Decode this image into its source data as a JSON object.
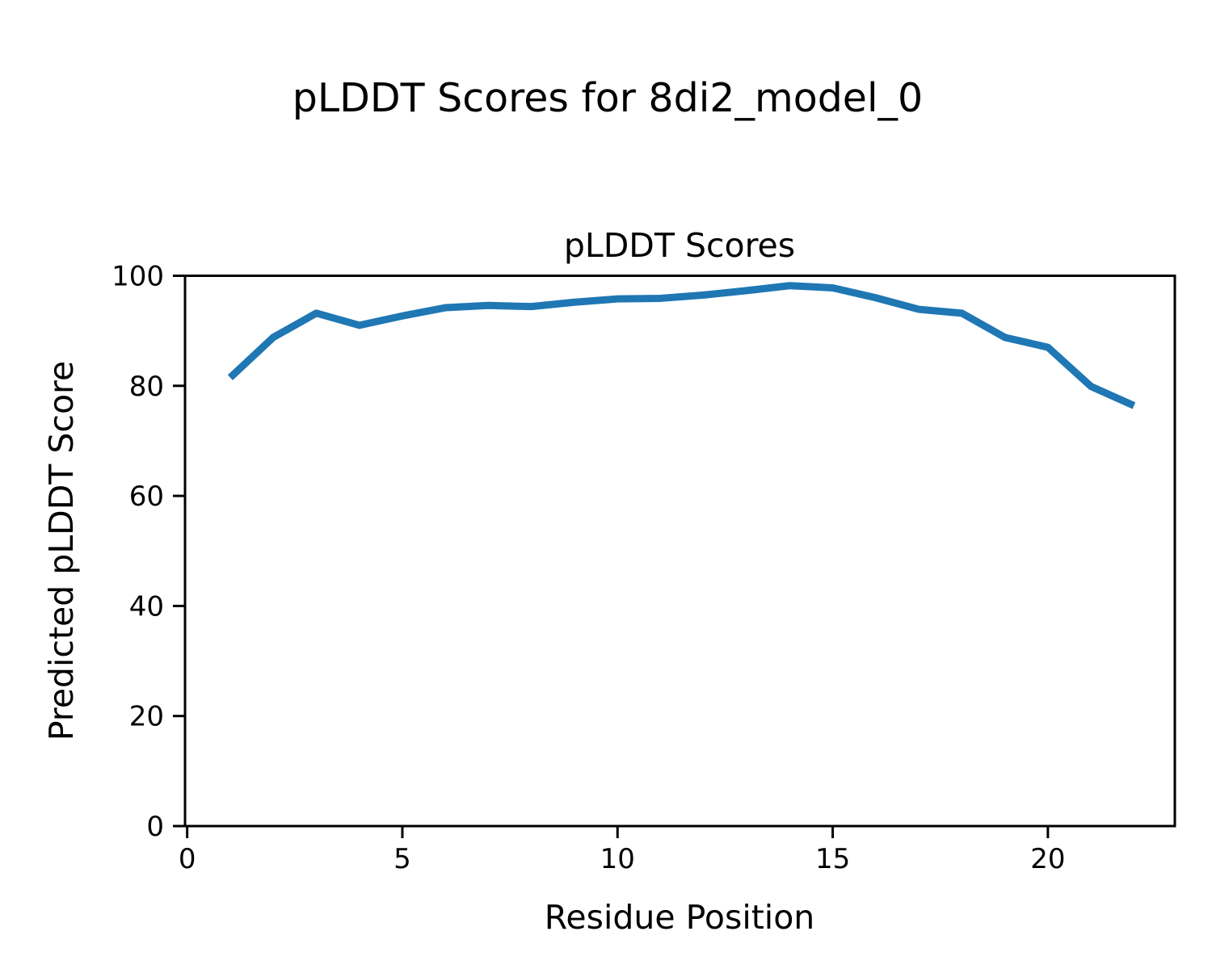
{
  "chart_data": {
    "type": "line",
    "suptitle": "pLDDT Scores for 8di2_model_0",
    "title": "pLDDT Scores",
    "xlabel": "Residue Position",
    "ylabel": "Predicted pLDDT Score",
    "x": [
      1,
      2,
      3,
      4,
      5,
      6,
      7,
      8,
      9,
      10,
      11,
      12,
      13,
      14,
      15,
      16,
      17,
      18,
      19,
      20,
      21,
      22
    ],
    "y": [
      81.5,
      88.8,
      93.2,
      91.0,
      92.7,
      94.2,
      94.6,
      94.4,
      95.2,
      95.8,
      95.9,
      96.5,
      97.3,
      98.2,
      97.8,
      96.0,
      93.9,
      93.2,
      88.8,
      87.0,
      79.9,
      76.4
    ],
    "xlim": [
      -0.05,
      22.95
    ],
    "ylim": [
      0,
      100
    ],
    "xticks": [
      0,
      5,
      10,
      15,
      20
    ],
    "yticks": [
      0,
      20,
      40,
      60,
      80,
      100
    ],
    "grid": false,
    "legend": null,
    "line_color": "#1f77b4",
    "text_color": "#000000",
    "background_color": "#ffffff"
  }
}
